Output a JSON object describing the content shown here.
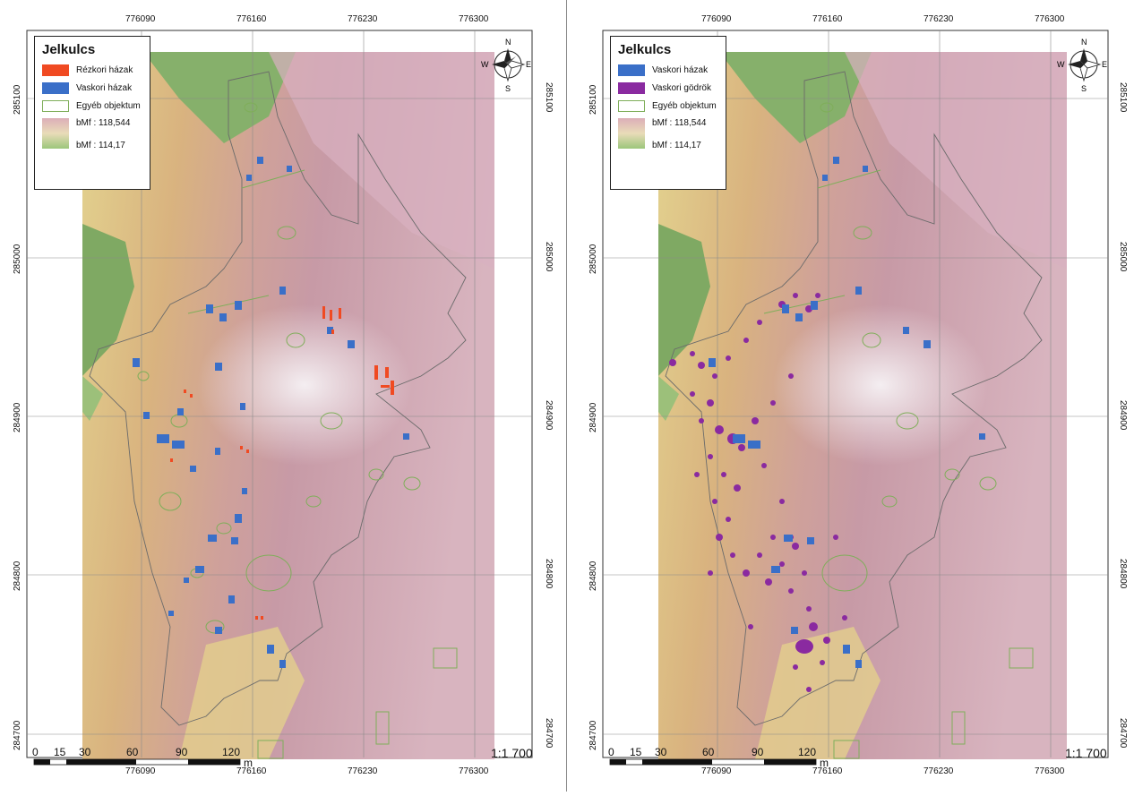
{
  "legend_left": {
    "title": "Jelkulcs",
    "items": [
      {
        "label": "Rézkori házak",
        "color": "#f04a22"
      },
      {
        "label": "Vaskori házak",
        "color": "#3a6fc8"
      },
      {
        "label": "Egyéb objektum",
        "color": "#7fae5a"
      }
    ],
    "ramp_high": "bMf : 118,544",
    "ramp_low": "bMf : 114,17"
  },
  "legend_right": {
    "title": "Jelkulcs",
    "items": [
      {
        "label": "Vaskori házak",
        "color": "#3a6fc8"
      },
      {
        "label": "Vaskori gödrök",
        "color": "#8a2aa0"
      },
      {
        "label": "Egyéb objektum",
        "color": "#7fae5a"
      }
    ],
    "ramp_high": "bMf : 118,544",
    "ramp_low": "bMf : 114,17"
  },
  "grid": {
    "x_ticks": [
      "776090",
      "776160",
      "776230",
      "776300"
    ],
    "y_ticks": [
      "285100",
      "285000",
      "284900",
      "284800",
      "284700"
    ]
  },
  "scale_bar": {
    "ticks": [
      "0",
      "15",
      "30",
      "60",
      "90",
      "120"
    ],
    "unit": "m",
    "ratio": "1:1 700"
  },
  "north_arrow": {
    "n": "N",
    "s": "S",
    "e": "E",
    "w": "W",
    "icon": "compass-rose-icon"
  }
}
